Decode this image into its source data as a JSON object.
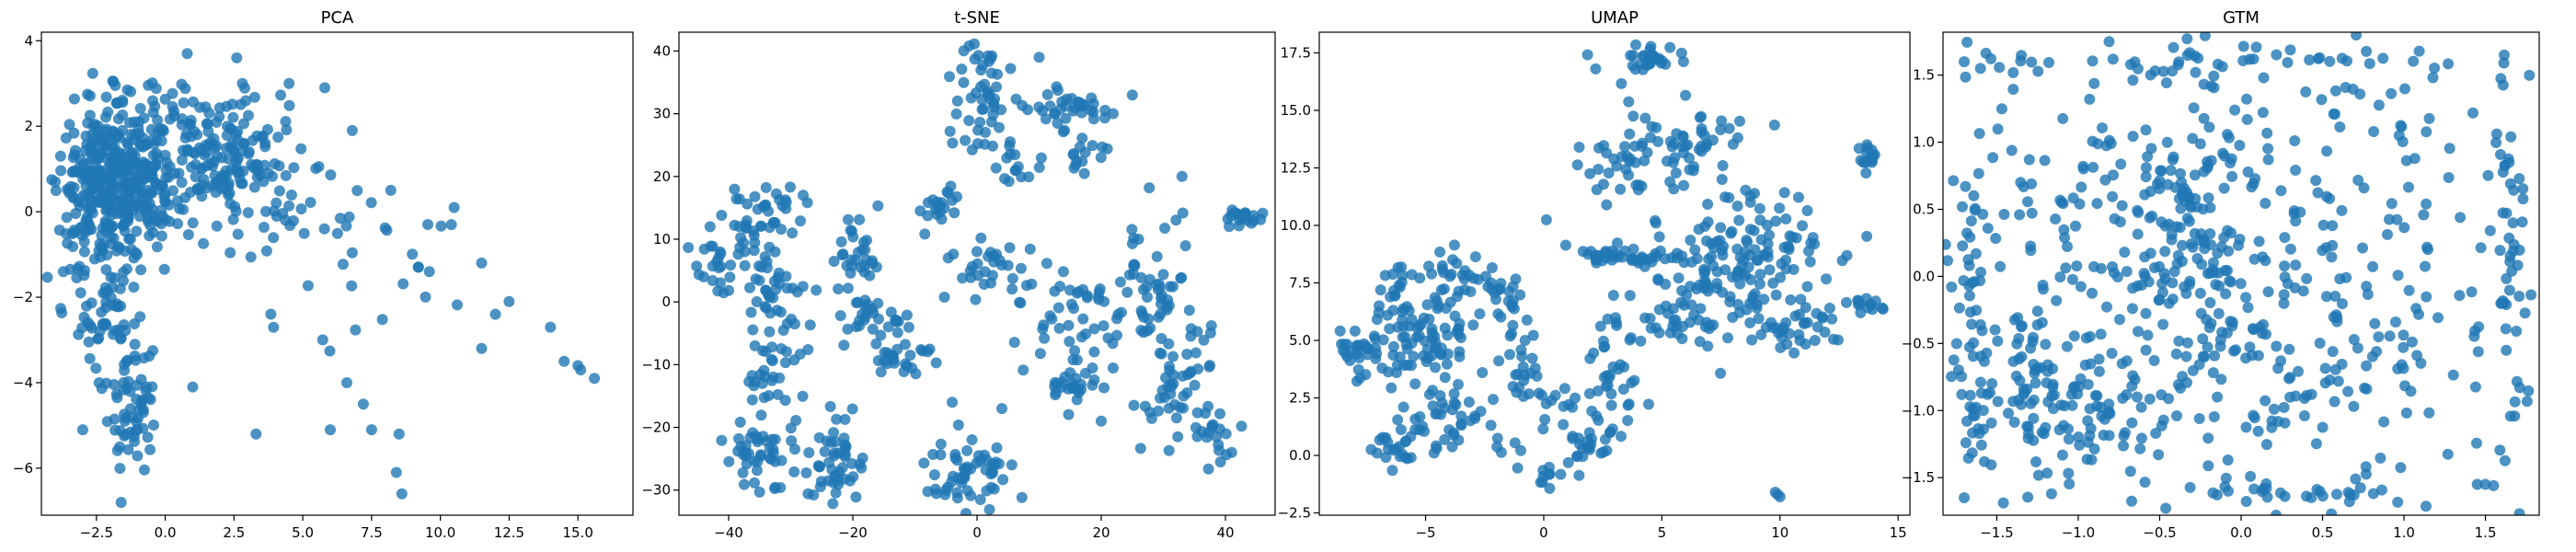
{
  "figure": {
    "marker_color": "#1f77b4",
    "background": "#ffffff"
  },
  "chart_data": [
    {
      "type": "scatter",
      "title": "PCA",
      "xlim": [
        -4.5,
        17.0
      ],
      "ylim": [
        -7.1,
        4.2
      ],
      "xticks": [
        -2.5,
        0.0,
        2.5,
        5.0,
        7.5,
        10.0,
        12.5,
        15.0
      ],
      "xtick_labels": [
        "−2.5",
        "0.0",
        "2.5",
        "5.0",
        "7.5",
        "10.0",
        "12.5",
        "15.0"
      ],
      "yticks": [
        -6,
        -4,
        -2,
        0,
        2,
        4
      ],
      "ytick_labels": [
        "−6",
        "−4",
        "−2",
        "0",
        "2",
        "4"
      ],
      "grid": false,
      "clusters": [
        {
          "center": [
            -2.2,
            0.5
          ],
          "spread": [
            0.8,
            1.0
          ],
          "n": 300
        },
        {
          "center": [
            -0.5,
            1.0
          ],
          "spread": [
            1.0,
            0.9
          ],
          "n": 160
        },
        {
          "center": [
            1.8,
            1.4
          ],
          "spread": [
            1.1,
            0.8
          ],
          "n": 110
        },
        {
          "center": [
            3.8,
            0.6
          ],
          "spread": [
            1.3,
            1.0
          ],
          "n": 60
        },
        {
          "center": [
            -1.2,
            -4.4
          ],
          "spread": [
            0.45,
            0.8
          ],
          "n": 60
        },
        {
          "center": [
            -2.0,
            -2.5
          ],
          "spread": [
            0.6,
            0.7
          ],
          "n": 40
        },
        {
          "center": [
            7.5,
            -1.0
          ],
          "spread": [
            1.6,
            1.2
          ],
          "n": 25
        }
      ],
      "points": [
        [
          14.0,
          -2.7
        ],
        [
          14.5,
          -3.5
        ],
        [
          15.0,
          -3.6
        ],
        [
          15.6,
          -3.9
        ],
        [
          15.1,
          -3.7
        ],
        [
          12.5,
          -2.1
        ],
        [
          11.5,
          -1.2
        ],
        [
          11.5,
          -3.2
        ],
        [
          12.0,
          -2.4
        ],
        [
          10.5,
          0.1
        ],
        [
          10.4,
          -0.3
        ],
        [
          9.6,
          -1.4
        ],
        [
          9.2,
          -1.3
        ],
        [
          8.6,
          -6.6
        ],
        [
          8.5,
          -5.2
        ],
        [
          8.4,
          -6.1
        ],
        [
          7.5,
          -5.1
        ],
        [
          7.2,
          -4.5
        ],
        [
          6.6,
          -4.0
        ],
        [
          6.0,
          -5.1
        ],
        [
          3.3,
          -5.2
        ],
        [
          1.0,
          -4.1
        ],
        [
          0.8,
          3.7
        ],
        [
          -3.0,
          -5.1
        ],
        [
          -2.4,
          -4.0
        ],
        [
          -1.6,
          -6.8
        ],
        [
          -3.7,
          -1.4
        ],
        [
          -4.0,
          0.7
        ],
        [
          -3.8,
          1.3
        ],
        [
          6.8,
          1.9
        ],
        [
          8.2,
          0.5
        ],
        [
          5.8,
          2.9
        ],
        [
          4.5,
          3.0
        ],
        [
          2.6,
          3.6
        ]
      ]
    },
    {
      "type": "scatter",
      "title": "t-SNE",
      "xlim": [
        -48.0,
        48.0
      ],
      "ylim": [
        -34.0,
        43.0
      ],
      "xticks": [
        -40,
        -20,
        0,
        20,
        40
      ],
      "xtick_labels": [
        "−40",
        "−20",
        "0",
        "20",
        "40"
      ],
      "yticks": [
        -30,
        -20,
        -10,
        0,
        10,
        20,
        30,
        40
      ],
      "ytick_labels": [
        "−30",
        "−20",
        "−10",
        "0",
        "10",
        "20",
        "30",
        "40"
      ],
      "grid": false,
      "clusters": [
        {
          "center": [
            -42,
            7
          ],
          "spread": [
            2.0,
            2.0
          ],
          "n": 20
        },
        {
          "center": [
            -34,
            14
          ],
          "spread": [
            3.0,
            2.5
          ],
          "n": 40
        },
        {
          "center": [
            -33,
            3
          ],
          "spread": [
            3.0,
            2.5
          ],
          "n": 35
        },
        {
          "center": [
            -33,
            -9
          ],
          "spread": [
            2.5,
            4.0
          ],
          "n": 40
        },
        {
          "center": [
            -35,
            -24
          ],
          "spread": [
            3.0,
            3.5
          ],
          "n": 45
        },
        {
          "center": [
            -23,
            -25
          ],
          "spread": [
            2.5,
            4.0
          ],
          "n": 50
        },
        {
          "center": [
            -20,
            8
          ],
          "spread": [
            2.0,
            3.0
          ],
          "n": 30
        },
        {
          "center": [
            -17,
            -2
          ],
          "spread": [
            3.0,
            2.0
          ],
          "n": 30
        },
        {
          "center": [
            -12,
            -9
          ],
          "spread": [
            2.5,
            2.0
          ],
          "n": 25
        },
        {
          "center": [
            -6,
            15
          ],
          "spread": [
            2.0,
            1.5
          ],
          "n": 20
        },
        {
          "center": [
            1,
            33
          ],
          "spread": [
            2.0,
            5.0
          ],
          "n": 50
        },
        {
          "center": [
            6,
            22
          ],
          "spread": [
            2.0,
            2.0
          ],
          "n": 15
        },
        {
          "center": [
            3,
            5
          ],
          "spread": [
            4.0,
            2.0
          ],
          "n": 30
        },
        {
          "center": [
            -1,
            -27
          ],
          "spread": [
            4.0,
            3.0
          ],
          "n": 55
        },
        {
          "center": [
            15,
            31
          ],
          "spread": [
            3.5,
            2.0
          ],
          "n": 35
        },
        {
          "center": [
            18,
            23
          ],
          "spread": [
            2.0,
            2.0
          ],
          "n": 15
        },
        {
          "center": [
            15,
            -3
          ],
          "spread": [
            4.0,
            5.0
          ],
          "n": 50
        },
        {
          "center": [
            15,
            -14
          ],
          "spread": [
            2.0,
            2.0
          ],
          "n": 20
        },
        {
          "center": [
            28,
            2
          ],
          "spread": [
            3.0,
            5.0
          ],
          "n": 50
        },
        {
          "center": [
            32,
            -11
          ],
          "spread": [
            3.0,
            6.0
          ],
          "n": 50
        },
        {
          "center": [
            38,
            -21
          ],
          "spread": [
            2.0,
            2.0
          ],
          "n": 20
        },
        {
          "center": [
            43,
            13
          ],
          "spread": [
            1.5,
            1.0
          ],
          "n": 20
        }
      ],
      "points": [
        [
          -43,
          12
        ],
        [
          -44,
          4
        ],
        [
          -28,
          17
        ],
        [
          -4,
          -16
        ],
        [
          -5,
          -30
        ],
        [
          4,
          -17
        ],
        [
          10,
          39
        ],
        [
          25,
          33
        ],
        [
          33,
          20
        ],
        [
          26,
          10
        ],
        [
          20,
          -19
        ],
        [
          41,
          -24
        ]
      ]
    },
    {
      "type": "scatter",
      "title": "UMAP",
      "xlim": [
        -9.5,
        15.5
      ],
      "ylim": [
        -2.6,
        18.4
      ],
      "xticks": [
        -5,
        0,
        5,
        10,
        15
      ],
      "xtick_labels": [
        "−5",
        "0",
        "5",
        "10",
        "15"
      ],
      "yticks": [
        -2.5,
        0.0,
        2.5,
        5.0,
        7.5,
        10.0,
        12.5,
        15.0,
        17.5
      ],
      "ytick_labels": [
        "−2.5",
        "0.0",
        "2.5",
        "5.0",
        "7.5",
        "10.0",
        "12.5",
        "15.0",
        "17.5"
      ],
      "grid": false,
      "clusters": [
        {
          "center": [
            -7.5,
            4.5
          ],
          "spread": [
            0.8,
            0.6
          ],
          "n": 40
        },
        {
          "center": [
            -6.3,
            6.8
          ],
          "spread": [
            0.5,
            1.0
          ],
          "n": 20
        },
        {
          "center": [
            -4.7,
            5.2
          ],
          "spread": [
            1.0,
            0.9
          ],
          "n": 60
        },
        {
          "center": [
            -4.0,
            7.8
          ],
          "spread": [
            1.0,
            0.6
          ],
          "n": 30
        },
        {
          "center": [
            -4.5,
            2.1
          ],
          "spread": [
            1.0,
            0.7
          ],
          "n": 30
        },
        {
          "center": [
            -6.5,
            0.3
          ],
          "spread": [
            0.7,
            0.4
          ],
          "n": 20
        },
        {
          "center": [
            -3.5,
            0.8
          ],
          "spread": [
            1.2,
            0.5
          ],
          "n": 20
        },
        {
          "center": [
            -1.5,
            6.8
          ],
          "spread": [
            0.7,
            0.5
          ],
          "n": 20
        },
        {
          "center": [
            -1.0,
            4.5
          ],
          "spread": [
            0.6,
            0.8
          ],
          "n": 15
        },
        {
          "center": [
            0.0,
            2.5
          ],
          "spread": [
            0.6,
            0.9
          ],
          "n": 20
        },
        {
          "center": [
            0.0,
            -0.8
          ],
          "spread": [
            0.4,
            0.3
          ],
          "n": 10
        },
        {
          "center": [
            2.0,
            0.3
          ],
          "spread": [
            0.5,
            0.4
          ],
          "n": 20
        },
        {
          "center": [
            3.0,
            2.5
          ],
          "spread": [
            0.8,
            1.5
          ],
          "n": 35
        },
        {
          "center": [
            3.3,
            8.6
          ],
          "spread": [
            1.2,
            0.2
          ],
          "n": 40
        },
        {
          "center": [
            5.5,
            5.8
          ],
          "spread": [
            1.8,
            0.6
          ],
          "n": 40
        },
        {
          "center": [
            4.2,
            17.1
          ],
          "spread": [
            0.8,
            0.4
          ],
          "n": 30
        },
        {
          "center": [
            3.5,
            12.8
          ],
          "spread": [
            1.2,
            1.2
          ],
          "n": 40
        },
        {
          "center": [
            6.5,
            13.8
          ],
          "spread": [
            1.3,
            0.9
          ],
          "n": 40
        },
        {
          "center": [
            8.5,
            8.5
          ],
          "spread": [
            1.8,
            1.5
          ],
          "n": 150
        },
        {
          "center": [
            11.0,
            5.5
          ],
          "spread": [
            1.0,
            0.6
          ],
          "n": 30
        },
        {
          "center": [
            13.5,
            6.5
          ],
          "spread": [
            0.6,
            0.2
          ],
          "n": 15
        },
        {
          "center": [
            13.7,
            12.9
          ],
          "spread": [
            0.2,
            0.4
          ],
          "n": 15
        }
      ],
      "points": [
        [
          9.9,
          -1.7
        ],
        [
          10.0,
          -1.8
        ],
        [
          9.8,
          -1.6
        ],
        [
          -1.3,
          3.0
        ],
        [
          -2.6,
          3.6
        ],
        [
          1.5,
          13.4
        ]
      ]
    },
    {
      "type": "scatter",
      "title": "GTM",
      "xlim": [
        -1.83,
        1.83
      ],
      "ylim": [
        -1.78,
        1.82
      ],
      "xticks": [
        -1.5,
        -1.0,
        -0.5,
        0.0,
        0.5,
        1.0,
        1.5
      ],
      "xtick_labels": [
        "−1.5",
        "−1.0",
        "−0.5",
        "0.0",
        "0.5",
        "1.0",
        "1.5"
      ],
      "yticks": [
        -1.5,
        -1.0,
        -0.5,
        0.0,
        0.5,
        1.0,
        1.5
      ],
      "ytick_labels": [
        "−1.5",
        "−1.0",
        "−0.5",
        "0.0",
        "0.5",
        "1.0",
        "1.5"
      ],
      "grid": false,
      "clusters": [
        {
          "center": [
            0.0,
            0.0
          ],
          "spread": [
            0.95,
            0.95
          ],
          "n": 500
        },
        {
          "center": [
            -1.2,
            -0.9
          ],
          "spread": [
            0.3,
            0.35
          ],
          "n": 120
        },
        {
          "center": [
            -0.4,
            0.2
          ],
          "spread": [
            0.2,
            0.3
          ],
          "n": 60
        },
        {
          "center": [
            -1.65,
            0.0
          ],
          "spread": [
            0.04,
            0.7
          ],
          "n": 40
        },
        {
          "center": [
            1.65,
            0.0
          ],
          "spread": [
            0.04,
            0.9
          ],
          "n": 40
        },
        {
          "center": [
            0.0,
            1.6
          ],
          "spread": [
            0.9,
            0.05
          ],
          "n": 40
        },
        {
          "center": [
            0.2,
            -1.6
          ],
          "spread": [
            0.5,
            0.05
          ],
          "n": 25
        },
        {
          "center": [
            -0.2,
            0.9
          ],
          "spread": [
            0.3,
            0.25
          ],
          "n": 30
        }
      ],
      "points": [
        [
          -1.7,
          1.6
        ],
        [
          -1.6,
          1.55
        ],
        [
          1.45,
          -1.55
        ],
        [
          1.5,
          -1.55
        ],
        [
          1.55,
          -1.56
        ],
        [
          -1.7,
          -1.65
        ],
        [
          0.3,
          -0.9
        ],
        [
          1.6,
          -0.2
        ]
      ]
    }
  ]
}
